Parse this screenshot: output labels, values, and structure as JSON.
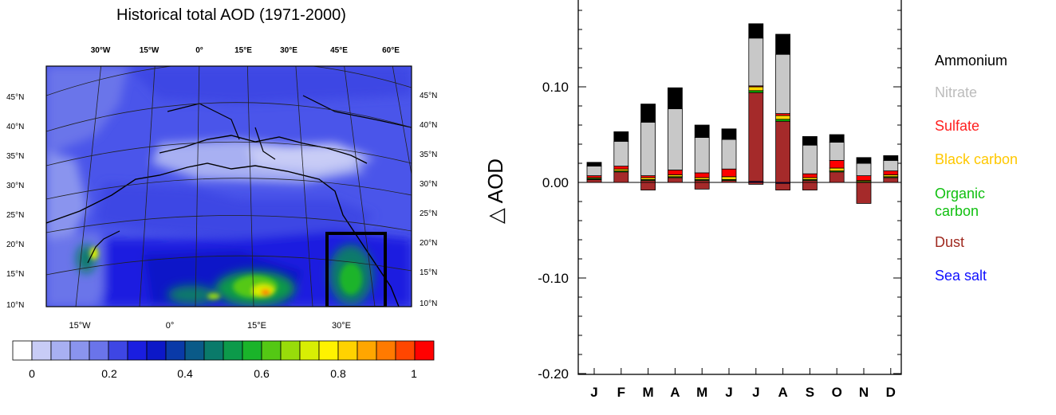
{
  "map": {
    "title": "Historical total AOD (1971-2000)",
    "top_lon_labels": [
      "30°W",
      "15°W",
      "0°",
      "15°E",
      "30°E",
      "45°E",
      "60°E"
    ],
    "bottom_lon_labels": [
      "15°W",
      "0°",
      "15°E",
      "30°E"
    ],
    "lat_labels_left": [
      "45°N",
      "40°N",
      "35°N",
      "30°N",
      "25°N",
      "20°N",
      "15°N",
      "10°N"
    ],
    "lat_labels_right": [
      "45°N",
      "40°N",
      "35°N",
      "30°N",
      "25°N",
      "20°N",
      "15°N",
      "10°N"
    ],
    "colorbar": {
      "colors": [
        "#ffffff",
        "#c8ccf6",
        "#a8b0f2",
        "#8a94ee",
        "#6a74ea",
        "#3e46e4",
        "#1a1ee0",
        "#0c18c8",
        "#0a3aa8",
        "#0a5a88",
        "#0a7a6a",
        "#0c9a4a",
        "#1ab42a",
        "#54c814",
        "#98dc0a",
        "#d8ee04",
        "#fff200",
        "#ffd200",
        "#ffa600",
        "#ff7a00",
        "#ff4600",
        "#ff0000"
      ],
      "labels": [
        "0",
        "0.2",
        "0.4",
        "0.6",
        "0.8",
        "1"
      ]
    }
  },
  "chart_data": {
    "type": "bar",
    "stacked": true,
    "categories": [
      "J",
      "F",
      "M",
      "A",
      "M",
      "J",
      "J",
      "A",
      "S",
      "O",
      "N",
      "D"
    ],
    "ylabel": "△ AOD",
    "ylim": [
      -0.2,
      0.2
    ],
    "yticks": [
      "0.10",
      "0.00",
      "-0.10",
      "-0.20"
    ],
    "series": [
      {
        "name": "Sea salt",
        "color": "#0000ff",
        "pos": [
          0.0,
          0.0,
          0.0,
          0.0,
          0.0,
          0.0,
          0.001,
          0.0,
          0.0,
          0.0,
          0.0,
          0.0
        ],
        "neg": [
          0.0,
          0.0,
          0.0,
          0.0,
          0.0,
          0.0,
          0.0,
          -0.001,
          0.0,
          0.0,
          0.0,
          0.0
        ]
      },
      {
        "name": "Dust",
        "color": "#a52a2a",
        "pos": [
          0.003,
          0.011,
          0.002,
          0.005,
          0.002,
          0.002,
          0.093,
          0.064,
          0.002,
          0.011,
          0.0,
          0.005
        ],
        "neg": [
          0.0,
          0.0,
          -0.008,
          0.0,
          -0.007,
          0.0,
          -0.002,
          -0.007,
          -0.008,
          0.0,
          -0.022,
          0.0
        ]
      },
      {
        "name": "Organic carbon",
        "color": "#00c800",
        "pos": [
          0.001,
          0.001,
          0.001,
          0.001,
          0.001,
          0.001,
          0.002,
          0.002,
          0.001,
          0.001,
          0.001,
          0.001
        ],
        "neg": [
          0,
          0,
          0,
          0,
          0,
          0,
          0,
          0,
          0,
          0,
          0,
          0
        ]
      },
      {
        "name": "Black carbon",
        "color": "#ffd700",
        "pos": [
          0.001,
          0.002,
          0.002,
          0.002,
          0.002,
          0.003,
          0.004,
          0.004,
          0.002,
          0.003,
          0.001,
          0.002
        ],
        "neg": [
          0,
          0,
          0,
          0,
          0,
          0,
          0,
          0,
          0,
          0,
          0,
          0
        ]
      },
      {
        "name": "Sulfate",
        "color": "#ff0000",
        "pos": [
          0.002,
          0.003,
          0.002,
          0.005,
          0.005,
          0.008,
          0.001,
          0.002,
          0.004,
          0.008,
          0.005,
          0.004
        ],
        "neg": [
          0,
          0,
          0,
          0,
          0,
          0,
          0,
          0,
          0,
          0,
          0,
          0
        ]
      },
      {
        "name": "Nitrate",
        "color": "#c8c8c8",
        "pos": [
          0.01,
          0.026,
          0.056,
          0.064,
          0.037,
          0.031,
          0.05,
          0.062,
          0.03,
          0.019,
          0.013,
          0.011
        ],
        "neg": [
          0,
          0,
          0,
          0,
          0,
          0,
          0,
          0,
          0,
          0,
          0,
          0
        ]
      },
      {
        "name": "Ammonium",
        "color": "#000000",
        "pos": [
          0.004,
          0.01,
          0.019,
          0.022,
          0.013,
          0.011,
          0.015,
          0.021,
          0.009,
          0.008,
          0.006,
          0.005
        ],
        "neg": [
          0,
          0,
          0,
          0,
          0,
          0,
          0,
          0,
          0,
          0,
          0,
          0
        ]
      }
    ],
    "legend": [
      {
        "label": "Ammonium",
        "color": "#000000"
      },
      {
        "label": "Nitrate",
        "color": "#bcbcbc"
      },
      {
        "label": "Sulfate",
        "color": "#ff2020"
      },
      {
        "label": "Black carbon",
        "color": "#ffc800"
      },
      {
        "label": "Organic carbon",
        "color": "#10c010"
      },
      {
        "label": "Dust",
        "color": "#a02a20"
      },
      {
        "label": "Sea salt",
        "color": "#1010ff"
      }
    ]
  }
}
